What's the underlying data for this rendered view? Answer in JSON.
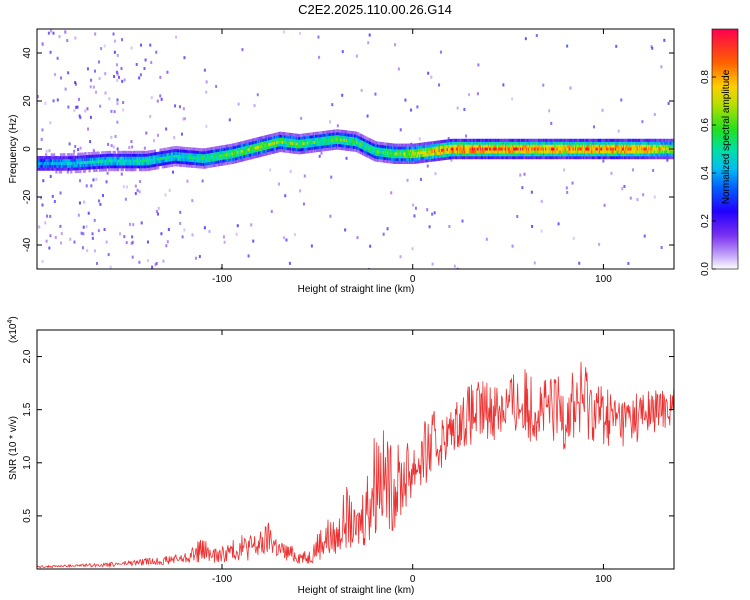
{
  "figure": {
    "title": "C2E2.2025.110.00.26.G14"
  },
  "chart_data": [
    {
      "type": "heatmap",
      "title": "C2E2.2025.110.00.26.G14",
      "xlabel": "Height of straight line (km)",
      "ylabel": "Frequency (Hz)",
      "xlim": [
        -197,
        137
      ],
      "ylim": [
        -50,
        50
      ],
      "x_ticks": [
        -100,
        0,
        100
      ],
      "y_ticks": [
        -40,
        -20,
        0,
        20,
        40
      ],
      "x_tick_labels": [
        "-100",
        "0",
        "100"
      ],
      "y_tick_labels": [
        "-40",
        "-20",
        "0",
        "20",
        "40"
      ],
      "colorbar": {
        "label": "Normalized spectral amplitude",
        "range": [
          0,
          1
        ],
        "ticks": [
          0.0,
          0.2,
          0.4,
          0.6,
          0.8
        ],
        "tick_labels": [
          "0.0",
          "0.2",
          "0.4",
          "0.6",
          "0.8"
        ],
        "colormap": [
          "#ffffff",
          "#9a5cf0",
          "#2a00ff",
          "#00a0ff",
          "#00e0c0",
          "#20e020",
          "#c8e000",
          "#ffd000",
          "#ff6000",
          "#ff0040"
        ]
      },
      "ridge": {
        "x": [
          -195,
          -180,
          -160,
          -140,
          -125,
          -110,
          -95,
          -80,
          -70,
          -60,
          -50,
          -40,
          -30,
          -20,
          -10,
          0,
          20,
          40,
          60,
          80,
          100,
          120,
          135
        ],
        "freq": [
          -6,
          -6,
          -5,
          -5,
          -3,
          -4,
          -2,
          1,
          3,
          2,
          3,
          4,
          3,
          -1,
          -2,
          -2,
          0,
          0,
          0,
          0,
          0,
          0,
          0
        ],
        "amplitude": [
          0.35,
          0.4,
          0.45,
          0.5,
          0.45,
          0.55,
          0.6,
          0.65,
          0.6,
          0.6,
          0.55,
          0.6,
          0.55,
          0.55,
          0.6,
          0.7,
          0.95,
          0.95,
          0.9,
          0.9,
          0.95,
          0.9,
          0.7
        ]
      }
    },
    {
      "type": "line",
      "xlabel": "Height of straight line (km)",
      "ylabel": "SNR (10 * v/v)",
      "y_scale_label": "(x10",
      "y_scale_exponent": "4",
      "y_scale_suffix": ")",
      "xlim": [
        -197,
        137
      ],
      "ylim": [
        0,
        2.25
      ],
      "x_ticks": [
        -100,
        0,
        100
      ],
      "y_ticks": [
        0.5,
        1.0,
        1.5,
        2.0
      ],
      "x_tick_labels": [
        "-100",
        "0",
        "100"
      ],
      "y_tick_labels": [
        "0.5",
        "1.0",
        "1.5",
        "2.0"
      ],
      "line_color": "#ee3030",
      "series": [
        {
          "x": [
            -197,
            -180,
            -160,
            -145,
            -130,
            -120,
            -110,
            -105,
            -100,
            -90,
            -80,
            -75,
            -70,
            -60,
            -55,
            -50,
            -45,
            -40,
            -35,
            -30,
            -25,
            -20,
            -18,
            -15,
            -10,
            -5,
            0,
            5,
            10,
            15,
            20,
            25,
            30,
            40,
            50,
            60,
            70,
            80,
            90,
            100,
            110,
            120,
            130,
            137
          ],
          "mean": [
            0.02,
            0.03,
            0.04,
            0.06,
            0.08,
            0.1,
            0.18,
            0.12,
            0.14,
            0.2,
            0.22,
            0.3,
            0.18,
            0.12,
            0.1,
            0.22,
            0.3,
            0.28,
            0.5,
            0.35,
            0.55,
            0.8,
            0.95,
            0.85,
            0.75,
            0.85,
            0.95,
            1.05,
            1.15,
            1.2,
            1.3,
            1.4,
            1.45,
            1.5,
            1.55,
            1.55,
            1.5,
            1.5,
            1.6,
            1.45,
            1.4,
            1.45,
            1.5,
            1.55
          ],
          "spread": [
            0.01,
            0.01,
            0.02,
            0.03,
            0.04,
            0.05,
            0.12,
            0.06,
            0.08,
            0.12,
            0.14,
            0.16,
            0.1,
            0.07,
            0.06,
            0.14,
            0.2,
            0.16,
            0.3,
            0.18,
            0.35,
            0.55,
            0.5,
            0.45,
            0.4,
            0.35,
            0.3,
            0.3,
            0.35,
            0.25,
            0.2,
            0.25,
            0.3,
            0.3,
            0.3,
            0.35,
            0.3,
            0.4,
            0.4,
            0.3,
            0.25,
            0.25,
            0.2,
            0.2
          ]
        }
      ]
    }
  ]
}
